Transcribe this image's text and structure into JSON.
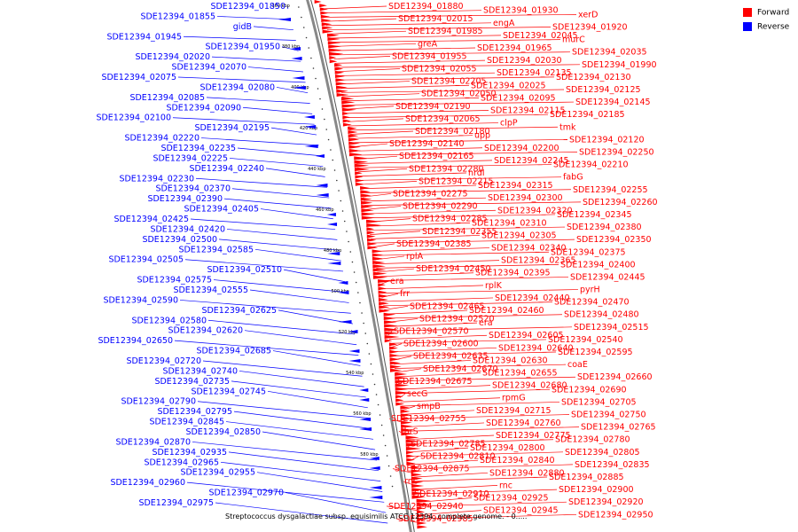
{
  "legend": {
    "forward": {
      "label": "Forward",
      "color": "#ff0000"
    },
    "reverse": {
      "label": "Reverse",
      "color": "#0000ff"
    }
  },
  "caption": "Streptococcus dysgalactiae subsp. equisimilis ATCC 12394, complete genome. - 0.....",
  "scale_labels": [
    "360 kbp",
    "380 kbp",
    "400 kbp",
    "420 kbp",
    "440 kbp",
    "460 kbp",
    "480 kbp",
    "500 kbp",
    "520 kbp",
    "540 kbp",
    "560 kbp",
    "580 kbp"
  ],
  "forward_labels": [
    "SDE12394_01880",
    "SDE12394_01930",
    "xerD",
    "SDE12394_02015",
    "engA",
    "SDE12394_01920",
    "SDE12394_01985",
    "SDE12394_02045",
    "murC",
    "greA",
    "SDE12394_01965",
    "SDE12394_02035",
    "SDE12394_01955",
    "SDE12394_02030",
    "SDE12394_01990",
    "SDE12394_02055",
    "SDE12394_02135",
    "SDE12394_02130",
    "SDE12394_02205",
    "SDE12394_02025",
    "SDE12394_02125",
    "SDE12394_02050",
    "SDE12394_02095",
    "SDE12394_02145",
    "SDE12394_02190",
    "SDE12394_02115",
    "SDE12394_02185",
    "SDE12394_02065",
    "clpP",
    "tmk",
    "SDE12394_02180",
    "upp",
    "SDE12394_02120",
    "SDE12394_02140",
    "SDE12394_02200",
    "SDE12394_02250",
    "SDE12394_02165",
    "SDE12394_02245",
    "SDE12394_02210",
    "SDE12394_02280",
    "nrdI",
    "fabG",
    "SDE12394_02215",
    "SDE12394_02315",
    "SDE12394_02255",
    "SDE12394_02275",
    "SDE12394_02300",
    "SDE12394_02260",
    "SDE12394_02290",
    "SDE12394_02320",
    "SDE12394_02345",
    "SDE12394_02285",
    "SDE12394_02310",
    "SDE12394_02380",
    "SDE12394_02355",
    "SDE12394_02305",
    "SDE12394_02350",
    "SDE12394_02385",
    "SDE12394_02340",
    "SDE12394_02375",
    "rplA",
    "SDE12394_02365",
    "SDE12394_02400",
    "SDE12394_02450",
    "SDE12394_02395",
    "SDE12394_02445",
    "era",
    "rplK",
    "pyrH",
    "frr",
    "SDE12394_02440",
    "SDE12394_02470",
    "SDE12394_02465",
    "SDE12394_02460",
    "SDE12394_02480",
    "SDE12394_02520",
    "era",
    "SDE12394_02515",
    "SDE12394_02570",
    "SDE12394_02605",
    "SDE12394_02540",
    "SDE12394_02600",
    "SDE12394_02640",
    "SDE12394_02595",
    "SDE12394_02635",
    "SDE12394_02630",
    "coaE",
    "SDE12394_02670",
    "SDE12394_02655",
    "SDE12394_02660",
    "SDE12394_02675",
    "SDE12394_02680",
    "SDE12394_02690",
    "secG",
    "rpmG",
    "SDE12394_02705",
    "smpB",
    "SDE12394_02715",
    "SDE12394_02750",
    "SDE12394_02755",
    "SDE12394_02760",
    "SDE12394_02765",
    "thrS",
    "SDE12394_02775",
    "SDE12394_02780",
    "SDE12394_02785",
    "SDE12394_02800",
    "SDE12394_02805",
    "SDE12394_02810",
    "SDE12394_02840",
    "SDE12394_02835",
    "SDE12394_02875",
    "SDE12394_02880",
    "SDE12394_02885",
    "rnc",
    "rnc",
    "SDE12394_02900",
    "SDE12394_02910",
    "SDE12394_02925",
    "SDE12394_02920",
    "SDE12394_02940",
    "SDE12394_02945",
    "SDE12394_02950",
    "SDE12394_02985"
  ],
  "reverse_labels": [
    "SDE12394_01850",
    "SDE12394_01855",
    "gidB",
    "SDE12394_01945",
    "SDE12394_01950",
    "SDE12394_02020",
    "SDE12394_02070",
    "SDE12394_02075",
    "SDE12394_02080",
    "SDE12394_02085",
    "SDE12394_02090",
    "SDE12394_02100",
    "SDE12394_02195",
    "SDE12394_02220",
    "SDE12394_02235",
    "SDE12394_02225",
    "SDE12394_02240",
    "SDE12394_02230",
    "SDE12394_02370",
    "SDE12394_02390",
    "SDE12394_02405",
    "SDE12394_02425",
    "SDE12394_02420",
    "SDE12394_02500",
    "SDE12394_02585",
    "SDE12394_02505",
    "SDE12394_02510",
    "SDE12394_02575",
    "SDE12394_02555",
    "SDE12394_02590",
    "SDE12394_02625",
    "SDE12394_02580",
    "SDE12394_02620",
    "SDE12394_02650",
    "SDE12394_02685",
    "SDE12394_02720",
    "SDE12394_02740",
    "SDE12394_02735",
    "SDE12394_02745",
    "SDE12394_02790",
    "SDE12394_02795",
    "SDE12394_02845",
    "SDE12394_02850",
    "SDE12394_02870",
    "SDE12394_02935",
    "SDE12394_02965",
    "SDE12394_02955",
    "SDE12394_02960",
    "SDE12394_02970",
    "SDE12394_02975"
  ]
}
